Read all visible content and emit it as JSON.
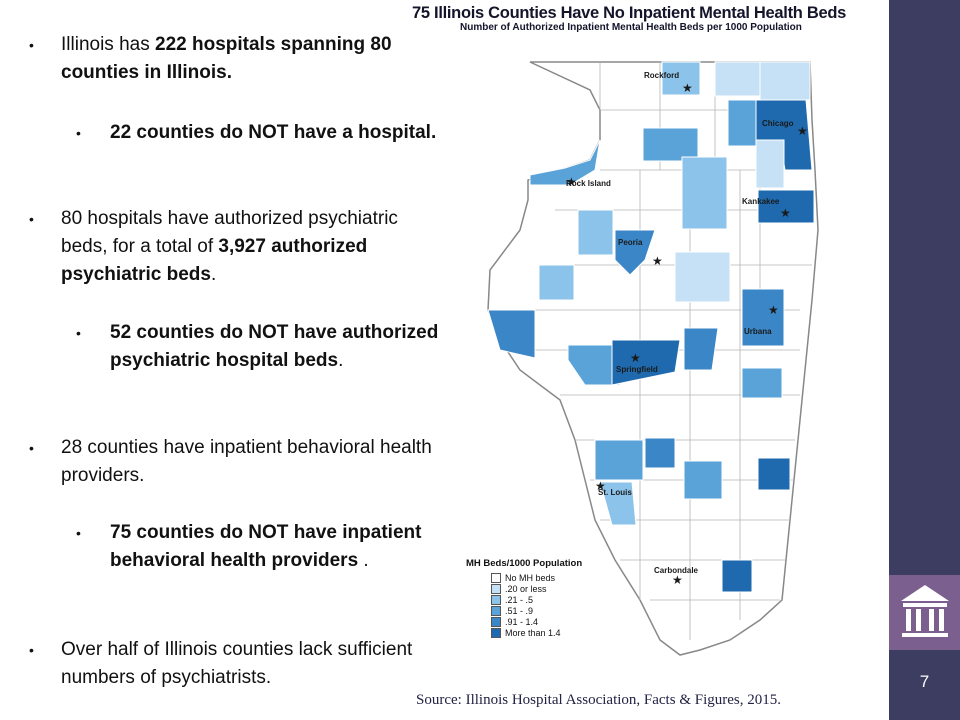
{
  "bullets": [
    {
      "level": 1,
      "parts": [
        {
          "t": "Illinois has ",
          "b": false
        },
        {
          "t": "222 hospitals spanning 80 counties in Illinois.",
          "b": true
        }
      ]
    },
    {
      "level": 2,
      "parts": [
        {
          "t": "22 counties do NOT have a hospital.",
          "b": true
        }
      ]
    },
    {
      "level": 1,
      "parts": [
        {
          "t": "80 hospitals have authorized psychiatric beds, for a total of ",
          "b": false
        },
        {
          "t": "3,927 authorized psychiatric beds",
          "b": true
        },
        {
          "t": ".",
          "b": false
        }
      ]
    },
    {
      "level": 2,
      "parts": [
        {
          "t": "52 counties do NOT have authorized psychiatric hospital beds",
          "b": true
        },
        {
          "t": ".",
          "b": false
        }
      ]
    },
    {
      "level": 1,
      "parts": [
        {
          "t": "28 counties have inpatient behavioral health providers.",
          "b": false
        }
      ]
    },
    {
      "level": 2,
      "parts": [
        {
          "t": "75 counties do NOT have inpatient behavioral health providers",
          "b": true
        },
        {
          "t": " .",
          "b": false
        }
      ]
    },
    {
      "level": 1,
      "parts": [
        {
          "t": "Over half of Illinois counties lack sufficient numbers of psychiatrists.",
          "b": false
        }
      ]
    }
  ],
  "map": {
    "title": "75 Illinois Counties Have No Inpatient Mental Health Beds",
    "subtitle": "Number of Authorized Inpatient Mental Health Beds per 1000 Population",
    "cities": [
      "Rockford",
      "Chicago",
      "Rock Island",
      "Kankakee",
      "Peoria",
      "Urbana",
      "Springfield",
      "St. Louis",
      "Carbondale"
    ],
    "legend_title": "MH Beds/1000 Population",
    "legend": [
      {
        "label": "No MH beds",
        "color": "#ffffff"
      },
      {
        "label": ".20 or less",
        "color": "#c6e0f5"
      },
      {
        "label": ".21 - .5",
        "color": "#8cc3ea"
      },
      {
        "label": ".51 - .9",
        "color": "#5aa3d9"
      },
      {
        "label": ".91 - 1.4",
        "color": "#3b86c6"
      },
      {
        "label": "More than 1.4",
        "color": "#1f6aae"
      }
    ]
  },
  "source": "Source: Illinois Hospital Association, Facts & Figures, 2015.",
  "slide_number": "7",
  "colors": {
    "sidebar": "#3d3c61",
    "logo_bg": "#7b5f8e"
  }
}
